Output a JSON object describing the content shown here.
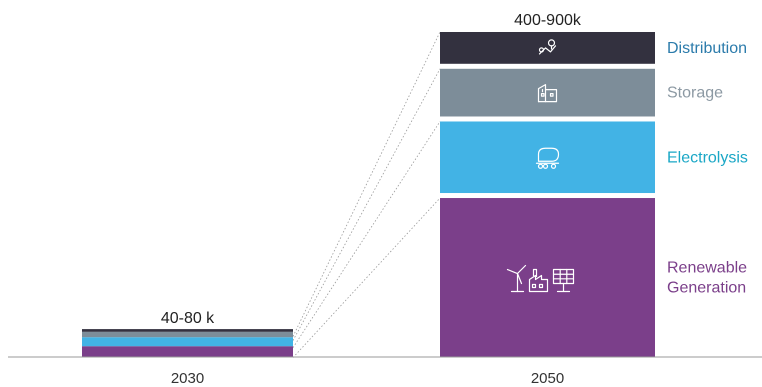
{
  "chart_data": {
    "type": "bar",
    "stacked": true,
    "categories": [
      "2030",
      "2050"
    ],
    "totals": [
      "40-80 k",
      "400-900k"
    ],
    "series": [
      {
        "name": "Renewable Generation",
        "label_lines": [
          "Renewable",
          "Generation"
        ],
        "color": "#7b3f8a",
        "icon": "wind-factory-solar-icon",
        "values": [
          0.6,
          4.0
        ]
      },
      {
        "name": "Electrolysis",
        "label_lines": [
          "Electrolysis"
        ],
        "color": "#42b3e5",
        "icon": "tanker-icon",
        "values": [
          0.5,
          1.8
        ]
      },
      {
        "name": "Storage",
        "label_lines": [
          "Storage"
        ],
        "color": "#7d8d99",
        "icon": "storage-building-icon",
        "values": [
          0.3,
          1.2
        ]
      },
      {
        "name": "Distribution",
        "label_lines": [
          "Distribution"
        ],
        "color": "#33313f",
        "icon": "distribution-pin-icon",
        "values": [
          0.15,
          0.8
        ]
      }
    ],
    "label_colors": {
      "Distribution": "#2b7bab",
      "Storage": "#8c99a3",
      "Electrolysis": "#1aa7c6",
      "Renewable Generation": "#7b3f8a"
    },
    "grid": false,
    "connector_lines": true
  }
}
